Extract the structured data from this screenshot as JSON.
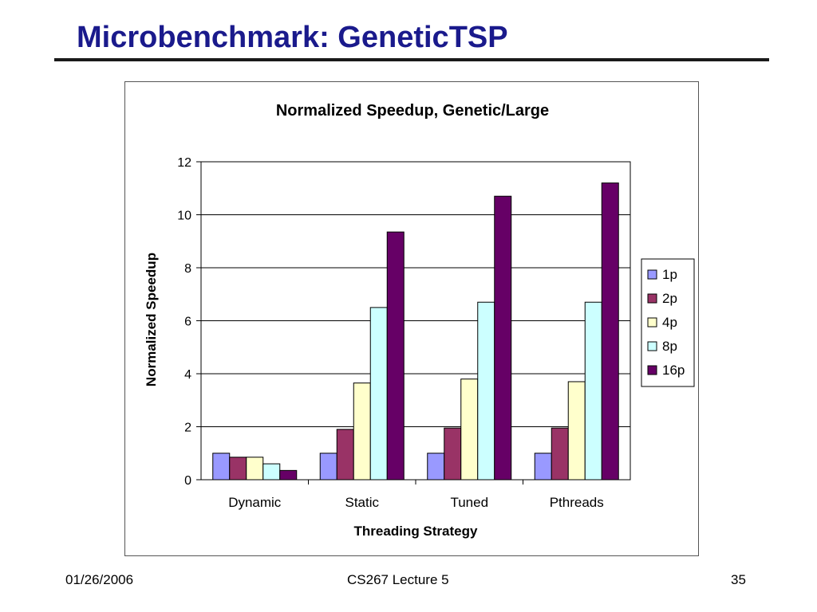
{
  "slide": {
    "title": "Microbenchmark: GeneticTSP",
    "footer_date": "01/26/2006",
    "footer_course": "CS267 Lecture 5",
    "footer_page": "35"
  },
  "colors": {
    "title": "#1a1a8c",
    "series": [
      "#9999ff",
      "#993366",
      "#ffffcc",
      "#ccffff",
      "#660066"
    ]
  },
  "chart_data": {
    "type": "bar",
    "title": "Normalized Speedup, Genetic/Large",
    "xlabel": "Threading Strategy",
    "ylabel": "Normalized Speedup",
    "ylim": [
      0,
      12
    ],
    "yticks": [
      0,
      2,
      4,
      6,
      8,
      10,
      12
    ],
    "grid": true,
    "legend_position": "right",
    "categories": [
      "Dynamic",
      "Static",
      "Tuned",
      "Pthreads"
    ],
    "series": [
      {
        "name": "1p",
        "color": "#9999ff",
        "values": [
          1.0,
          1.0,
          1.0,
          1.0
        ]
      },
      {
        "name": "2p",
        "color": "#993366",
        "values": [
          0.85,
          1.9,
          1.95,
          1.95
        ]
      },
      {
        "name": "4p",
        "color": "#ffffcc",
        "values": [
          0.85,
          3.65,
          3.8,
          3.7
        ]
      },
      {
        "name": "8p",
        "color": "#ccffff",
        "values": [
          0.6,
          6.5,
          6.7,
          6.7
        ]
      },
      {
        "name": "16p",
        "color": "#660066",
        "values": [
          0.35,
          9.35,
          10.7,
          11.2
        ]
      }
    ]
  }
}
